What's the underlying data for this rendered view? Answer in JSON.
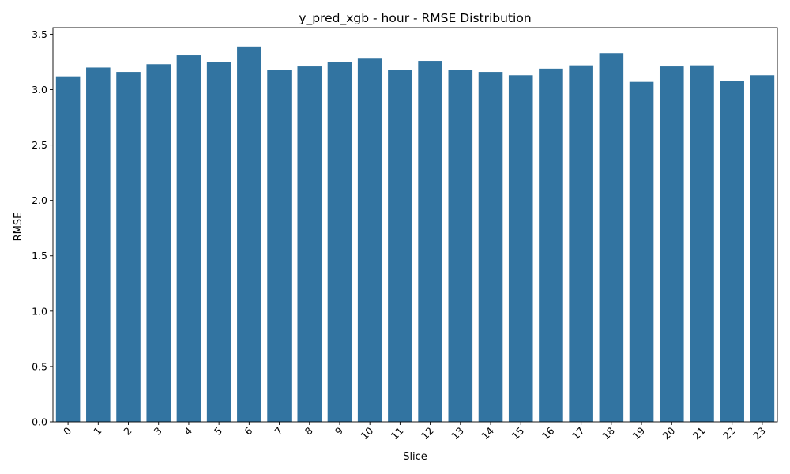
{
  "chart_data": {
    "type": "bar",
    "title": "y_pred_xgb - hour - RMSE Distribution",
    "xlabel": "Slice",
    "ylabel": "RMSE",
    "categories": [
      "0",
      "1",
      "2",
      "3",
      "4",
      "5",
      "6",
      "7",
      "8",
      "9",
      "10",
      "11",
      "12",
      "13",
      "14",
      "15",
      "16",
      "17",
      "18",
      "19",
      "20",
      "21",
      "22",
      "23"
    ],
    "values": [
      3.12,
      3.2,
      3.16,
      3.23,
      3.31,
      3.25,
      3.39,
      3.18,
      3.21,
      3.25,
      3.28,
      3.18,
      3.26,
      3.18,
      3.16,
      3.13,
      3.19,
      3.22,
      3.33,
      3.07,
      3.21,
      3.22,
      3.08,
      3.13
    ],
    "ylim": [
      0,
      3.56
    ],
    "yticks": [
      "0.0",
      "0.5",
      "1.0",
      "1.5",
      "2.0",
      "2.5",
      "3.0",
      "3.5"
    ],
    "bar_color": "#3274a1",
    "grid": false,
    "legend": "none"
  }
}
